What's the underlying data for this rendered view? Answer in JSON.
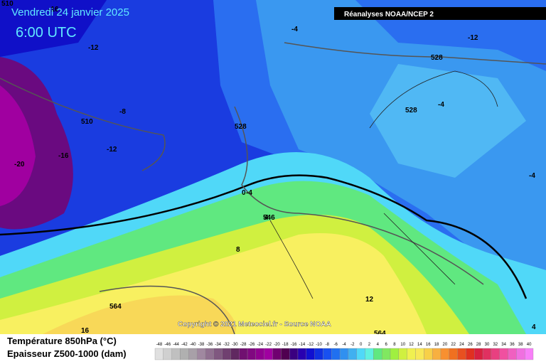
{
  "header": {
    "date": "Vendredi 24 janvier 2025",
    "time": "6:00 UTC",
    "source": "Réanalyses NOAA/NCEP 2",
    "copyright": "Copyright © 2021 Meteociel.fr - Source NOAA"
  },
  "legend": {
    "title_temp": "Température 850hPa (°C)",
    "title_thickness": "Epaisseur Z500-1000 (dam)",
    "values": [
      -48,
      -46,
      -44,
      -42,
      -40,
      -38,
      -36,
      -34,
      -32,
      -30,
      -28,
      -26,
      -24,
      -22,
      -20,
      -18,
      -16,
      -14,
      -12,
      -10,
      -8,
      -6,
      -4,
      -2,
      0,
      2,
      4,
      6,
      8,
      10,
      12,
      14,
      16,
      18,
      20,
      22,
      24,
      26,
      28,
      30,
      32,
      34,
      36,
      38,
      40
    ],
    "colors": [
      "#e0e0e0",
      "#d0d0d0",
      "#c0c0c0",
      "#b0b0b0",
      "#a8a0a8",
      "#a088a0",
      "#907090",
      "#805880",
      "#704070",
      "#602860",
      "#701070",
      "#800880",
      "#900090",
      "#a000a0",
      "#700070",
      "#500050",
      "#3a0080",
      "#2800b0",
      "#1010d0",
      "#1030e0",
      "#1850f0",
      "#2070f0",
      "#3090f0",
      "#40b0f0",
      "#50d8f8",
      "#60f0e0",
      "#60e880",
      "#80e860",
      "#a0f040",
      "#d0f040",
      "#f0f050",
      "#f8e858",
      "#f8d048",
      "#f8b040",
      "#f89030",
      "#f07020",
      "#e85020",
      "#e03020",
      "#d82040",
      "#e03060",
      "#e84080",
      "#f050a0",
      "#f060c0",
      "#f070e0",
      "#f880f8"
    ]
  },
  "contour_labels": [
    "510",
    "-16",
    "-12",
    "-4",
    "-12",
    "528",
    "-8",
    "510",
    "-16",
    "-12",
    "-20",
    "528",
    "528",
    "-4",
    "-4",
    "0",
    "546",
    "4",
    "8",
    "12",
    "564",
    "16",
    "564",
    "4",
    "-4"
  ]
}
